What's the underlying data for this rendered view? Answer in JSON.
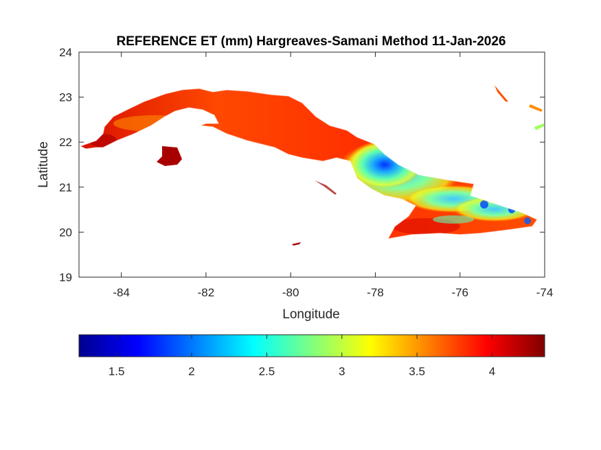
{
  "chart_data": {
    "type": "heatmap",
    "title": "REFERENCE ET (mm) Hargreaves-Samani Method  11-Jan-2026",
    "xlabel": "Longitude",
    "ylabel": "Latitude",
    "xlim": [
      -85,
      -74
    ],
    "ylim": [
      19,
      24
    ],
    "xticks": [
      -84,
      -82,
      -80,
      -78,
      -76,
      -74
    ],
    "yticks": [
      19,
      20,
      21,
      22,
      23,
      24
    ],
    "xtick_labels": [
      "-84",
      "-82",
      "-80",
      "-78",
      "-76",
      "-74"
    ],
    "ytick_labels": [
      "19",
      "20",
      "21",
      "22",
      "23",
      "24"
    ],
    "grid": false,
    "colormap": "jet",
    "colorbar": {
      "location": "bottom",
      "range": [
        1.25,
        4.35
      ],
      "ticks": [
        1.5,
        2,
        2.5,
        3,
        3.5,
        4
      ],
      "tick_labels": [
        "1.5",
        "2",
        "2.5",
        "3",
        "3.5",
        "4"
      ]
    },
    "regions": [
      {
        "area": "western and central Cuba",
        "approx_value": 3.8
      },
      {
        "area": "Isla de la Juventud",
        "approx_value": 4.3
      },
      {
        "area": "east-central interior (near -77.7, 21.5)",
        "approx_value": 1.7
      },
      {
        "area": "eastern interior",
        "approx_value": 2.6
      },
      {
        "area": "southeastern coast",
        "approx_value": 3.8
      }
    ]
  }
}
